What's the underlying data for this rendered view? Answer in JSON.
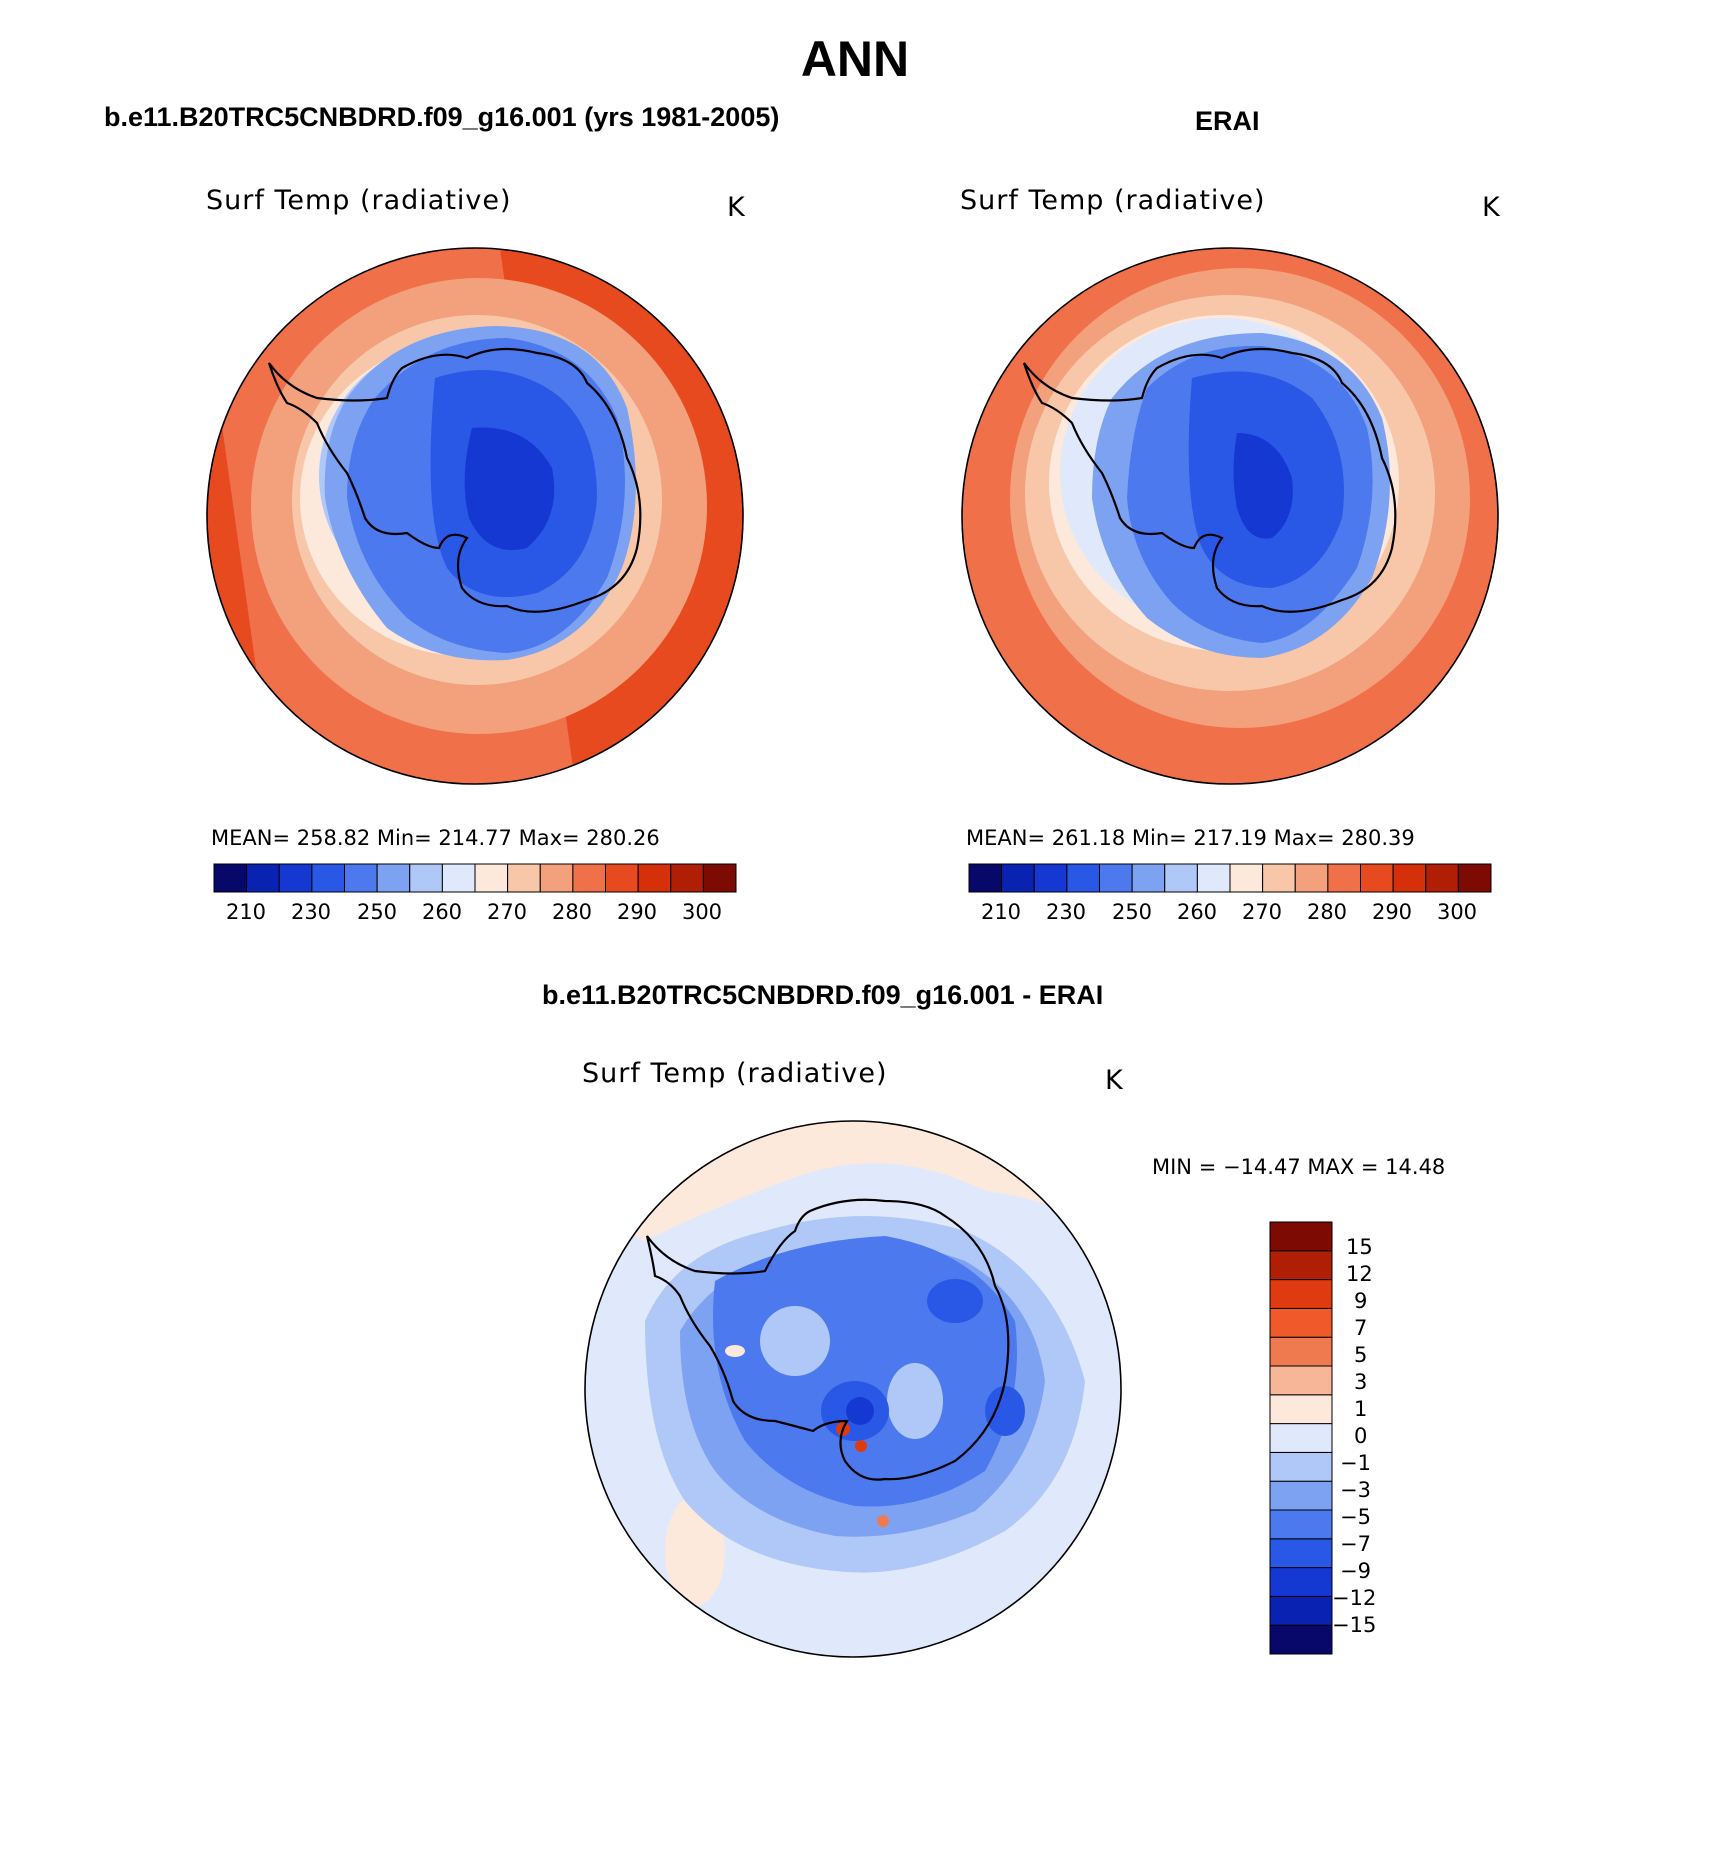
{
  "page": {
    "title": "ANN"
  },
  "palettes": {
    "abs": [
      "#08086b",
      "#0a22b2",
      "#1638d2",
      "#2a58e6",
      "#4c7aee",
      "#7ea2f2",
      "#b0c8f7",
      "#dfe9fb",
      "#fde8dc",
      "#f8c7aa",
      "#f3a07c",
      "#f0704a",
      "#e84a20",
      "#d5300a",
      "#b01e06",
      "#7e0a04"
    ],
    "diff": [
      "#08086b",
      "#0a22b2",
      "#1638d2",
      "#2a58e6",
      "#4c7aee",
      "#7ea2f2",
      "#b0c8f7",
      "#dfe9fb",
      "#fde8dc",
      "#f8b699",
      "#f07a50",
      "#f05a2a",
      "#e03a10",
      "#b01e06",
      "#7e0a04"
    ]
  },
  "panels": [
    {
      "header": "b.e11.B20TRC5CNBDRD.f09_g16.001 (yrs 1981-2005)",
      "variable": "Surf Temp (radiative)",
      "units": "K",
      "stats": "MEAN= 258.82   Min= 214.77   Max= 280.26",
      "ticks": [
        "210",
        "230",
        "250",
        "260",
        "270",
        "280",
        "290",
        "300"
      ]
    },
    {
      "header": "ERAI",
      "variable": "Surf Temp (radiative)",
      "units": "K",
      "stats": "MEAN= 261.18   Min= 217.19   Max= 280.39",
      "ticks": [
        "210",
        "230",
        "250",
        "260",
        "270",
        "280",
        "290",
        "300"
      ]
    },
    {
      "header": "b.e11.B20TRC5CNBDRD.f09_g16.001 - ERAI",
      "variable": "Surf Temp (radiative)",
      "units": "K",
      "stats": "MIN = −14.47 MAX =   14.48",
      "ticks": [
        "15",
        "12",
        "9",
        "7",
        "5",
        "3",
        "1",
        "0",
        "−1",
        "−3",
        "−5",
        "−7",
        "−9",
        "−12",
        "−15"
      ]
    }
  ]
}
